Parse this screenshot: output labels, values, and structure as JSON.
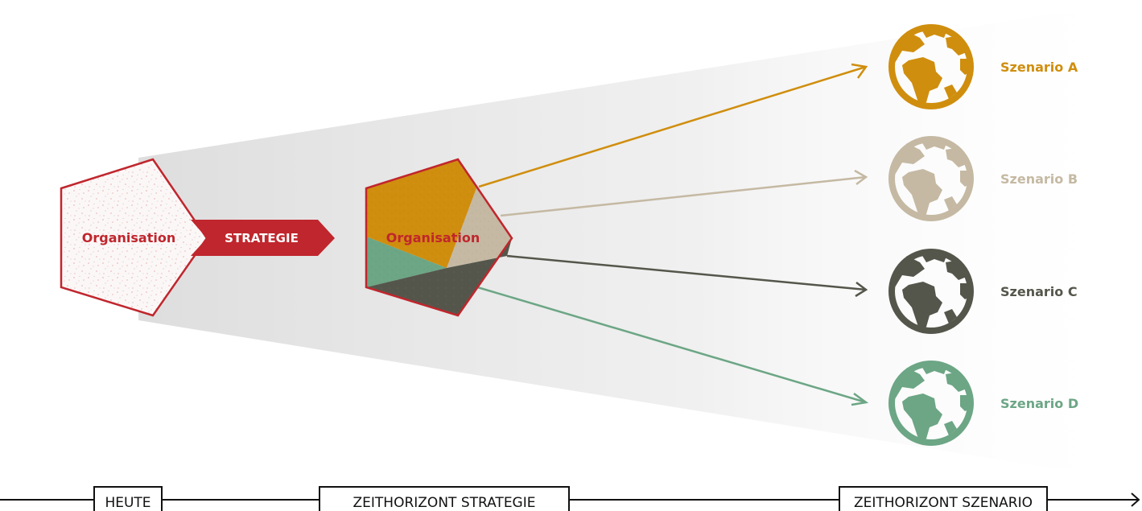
{
  "colors": {
    "red": "#C0262D",
    "orange": "#D08E0E",
    "beige": "#C5B9A3",
    "dark": "#55564B",
    "green": "#6CA685",
    "beam": "#E8E8E8",
    "axis": "#111111"
  },
  "left_shape": {
    "label": "Organisation"
  },
  "strategy_arrow": {
    "label": "STRATEGIE"
  },
  "right_shape": {
    "label": "Organisation"
  },
  "scenarios": [
    {
      "label": "Szenario A",
      "color": "#D08E0E",
      "icon": "globe-icon"
    },
    {
      "label": "Szenario B",
      "color": "#C5B9A3",
      "icon": "globe-icon"
    },
    {
      "label": "Szenario C",
      "color": "#55564B",
      "icon": "globe-icon"
    },
    {
      "label": "Szenario D",
      "color": "#6CA685",
      "icon": "globe-icon"
    }
  ],
  "timeline": {
    "labels": [
      "HEUTE",
      "ZEITHORIZONT STRATEGIE",
      "ZEITHORIZONT SZENARIO"
    ]
  }
}
